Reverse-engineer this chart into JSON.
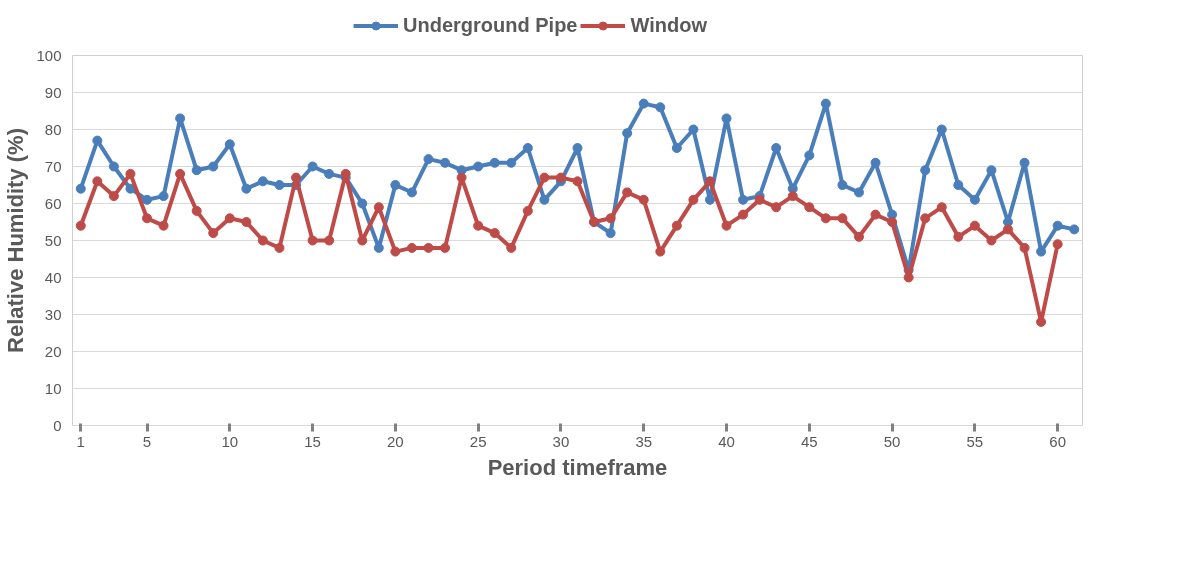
{
  "chart_data": {
    "type": "line",
    "xlabel": "Period timeframe",
    "ylabel": "Relative Humidity (%)",
    "x": [
      1,
      2,
      3,
      4,
      5,
      6,
      7,
      8,
      9,
      10,
      11,
      12,
      13,
      14,
      15,
      16,
      17,
      18,
      19,
      20,
      21,
      22,
      23,
      24,
      25,
      26,
      27,
      28,
      29,
      30,
      31,
      32,
      33,
      34,
      35,
      36,
      37,
      38,
      39,
      40,
      41,
      42,
      43,
      44,
      45,
      46,
      47,
      48,
      49,
      50,
      51,
      52,
      53,
      54,
      55,
      56,
      57,
      58,
      59,
      60,
      61
    ],
    "series": [
      {
        "name": "Underground Pipe",
        "color": "#4a7ebb",
        "values": [
          64,
          77,
          70,
          64,
          61,
          62,
          83,
          69,
          70,
          76,
          64,
          66,
          65,
          65,
          70,
          68,
          67,
          60,
          48,
          65,
          63,
          72,
          71,
          69,
          70,
          71,
          71,
          75,
          61,
          66,
          75,
          55,
          52,
          79,
          87,
          86,
          75,
          80,
          61,
          83,
          61,
          62,
          75,
          64,
          73,
          87,
          65,
          63,
          71,
          57,
          42,
          69,
          80,
          65,
          61,
          69,
          55,
          71,
          47,
          54,
          53
        ]
      },
      {
        "name": "Window",
        "color": "#be4b48",
        "values": [
          54,
          66,
          62,
          68,
          56,
          54,
          68,
          58,
          52,
          56,
          55,
          50,
          48,
          67,
          50,
          50,
          68,
          50,
          59,
          47,
          48,
          48,
          48,
          67,
          54,
          52,
          48,
          58,
          67,
          67,
          66,
          55,
          56,
          63,
          61,
          47,
          54,
          61,
          66,
          54,
          57,
          61,
          59,
          62,
          59,
          56,
          56,
          51,
          57,
          55,
          40,
          56,
          59,
          51,
          54,
          50,
          53,
          48,
          28,
          49,
          null
        ]
      }
    ],
    "xlim": [
      0.5,
      61.5
    ],
    "xticks": [
      1,
      5,
      10,
      15,
      20,
      25,
      30,
      35,
      40,
      45,
      50,
      55,
      60
    ],
    "ylim": [
      0,
      100
    ],
    "yticks": [
      0,
      10,
      20,
      30,
      40,
      50,
      60,
      70,
      80,
      90,
      100
    ],
    "grid": "y",
    "legend": "top",
    "marker": "circle",
    "line_style": "solid"
  }
}
